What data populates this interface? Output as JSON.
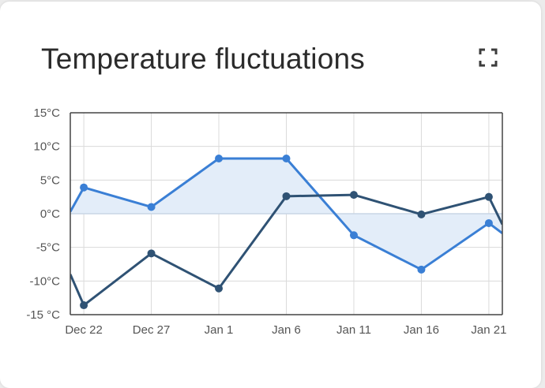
{
  "card": {
    "title": "Temperature fluctuations",
    "expand_icon": "fullscreen-icon"
  },
  "colors": {
    "series_a": "#3a7fd5",
    "series_b": "#2f5274",
    "fill": "#e3edf9",
    "grid": "#dadada",
    "axis": "#444444",
    "text": "#555555"
  },
  "chart_data": {
    "type": "line",
    "title": "Temperature fluctuations",
    "xlabel": "",
    "ylabel": "",
    "x_tick_labels": [
      "Dec 22",
      "Dec 27",
      "Jan 1",
      "Jan 6",
      "Jan 11",
      "Jan 16",
      "Jan 21"
    ],
    "y_tick_labels": [
      "15°C",
      "10°C",
      "5°C",
      "0°C",
      "-5°C",
      "-10°C",
      "-15 °C"
    ],
    "y_ticks": [
      15,
      10,
      5,
      0,
      -5,
      -10,
      -15
    ],
    "ylim": [
      -15,
      15
    ],
    "xlim": [
      "2023-12-21",
      "2024-01-22"
    ],
    "grid": true,
    "legend": "none",
    "series": [
      {
        "points": [
          {
            "x": "2023-12-21",
            "y": 0.3,
            "marker": false
          },
          {
            "x": "2023-12-22",
            "y": 3.9,
            "marker": true
          },
          {
            "x": "2023-12-27",
            "y": 1.0,
            "marker": true
          },
          {
            "x": "2024-01-01",
            "y": 8.2,
            "marker": true
          },
          {
            "x": "2024-01-06",
            "y": 8.2,
            "marker": true
          },
          {
            "x": "2024-01-11",
            "y": -3.2,
            "marker": true
          },
          {
            "x": "2024-01-16",
            "y": -8.3,
            "marker": true
          },
          {
            "x": "2024-01-21",
            "y": -1.4,
            "marker": true
          },
          {
            "x": "2024-01-22",
            "y": -2.9,
            "marker": false
          }
        ]
      },
      {
        "points": [
          {
            "x": "2023-12-21",
            "y": -9.0,
            "marker": false
          },
          {
            "x": "2023-12-22",
            "y": -13.6,
            "marker": true
          },
          {
            "x": "2023-12-27",
            "y": -5.9,
            "marker": true
          },
          {
            "x": "2024-01-01",
            "y": -11.1,
            "marker": true
          },
          {
            "x": "2024-01-06",
            "y": 2.6,
            "marker": true
          },
          {
            "x": "2024-01-11",
            "y": 2.8,
            "marker": true
          },
          {
            "x": "2024-01-16",
            "y": -0.1,
            "marker": true
          },
          {
            "x": "2024-01-21",
            "y": 2.5,
            "marker": true
          },
          {
            "x": "2024-01-22",
            "y": -1.6,
            "marker": false
          }
        ]
      }
    ],
    "area_between": "series 1 and 0°C"
  }
}
